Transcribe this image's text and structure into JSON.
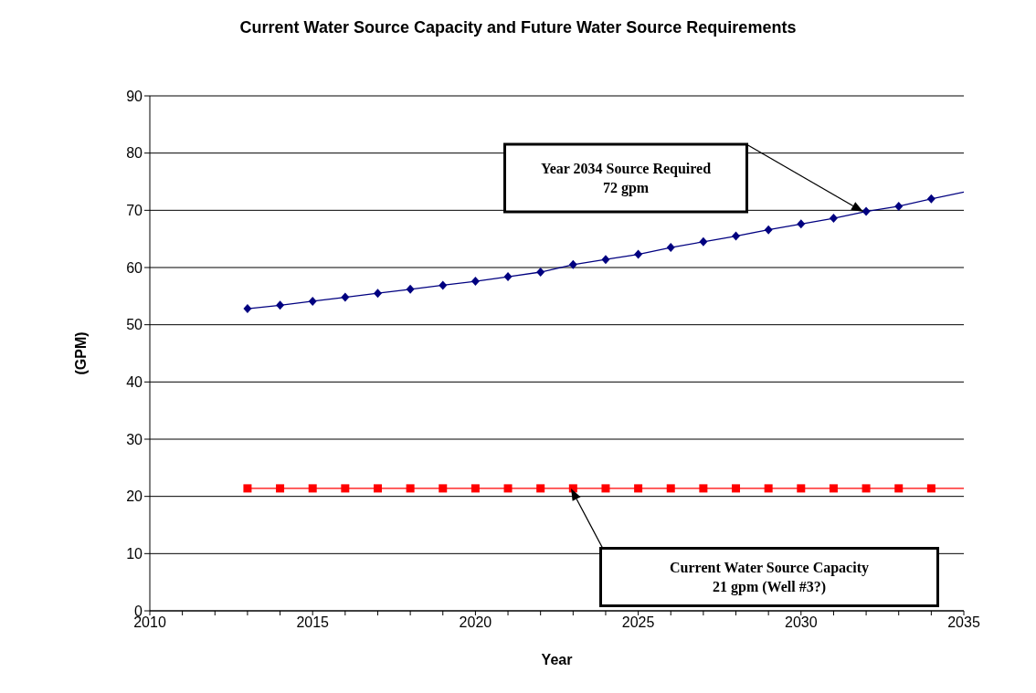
{
  "chart_data": {
    "type": "line",
    "title": "Current Water Source Capacity and Future Water Source Requirements",
    "xlabel": "Year",
    "ylabel": "(GPM)",
    "series": [
      {
        "color": "#000080",
        "marker": "diamond",
        "x": [
          2013,
          2014,
          2015,
          2016,
          2017,
          2018,
          2019,
          2020,
          2021,
          2022,
          2023,
          2024,
          2025,
          2026,
          2027,
          2028,
          2029,
          2030,
          2031,
          2032,
          2033,
          2034
        ],
        "values": [
          52.8,
          53.4,
          54.1,
          54.8,
          55.5,
          56.2,
          56.9,
          57.6,
          58.4,
          59.2,
          60.5,
          61.4,
          62.3,
          63.5,
          64.5,
          65.5,
          66.6,
          67.6,
          68.6,
          69.8,
          70.7,
          72.0
        ]
      },
      {
        "color": "#000080",
        "marker": "none",
        "x": [
          2034,
          2035
        ],
        "values": [
          72.0,
          73.2
        ]
      },
      {
        "color": "#ff0000",
        "marker": "square",
        "x": [
          2013,
          2014,
          2015,
          2016,
          2017,
          2018,
          2019,
          2020,
          2021,
          2022,
          2023,
          2024,
          2025,
          2026,
          2027,
          2028,
          2029,
          2030,
          2031,
          2032,
          2033,
          2034
        ],
        "values": [
          21.4,
          21.4,
          21.4,
          21.4,
          21.4,
          21.4,
          21.4,
          21.4,
          21.4,
          21.4,
          21.4,
          21.4,
          21.4,
          21.4,
          21.4,
          21.4,
          21.4,
          21.4,
          21.4,
          21.4,
          21.4,
          21.4
        ]
      },
      {
        "color": "#ff0000",
        "marker": "none",
        "x": [
          2034,
          2035
        ],
        "values": [
          21.4,
          21.4
        ]
      }
    ],
    "xlim": [
      2010,
      2035
    ],
    "xticks": [
      2010,
      {
        "value": 2011,
        "label": null
      },
      {
        "value": 2012,
        "label": null
      },
      {
        "value": 2013,
        "label": null
      },
      {
        "value": 2014,
        "label": null
      },
      2015,
      {
        "value": 2016,
        "label": null
      },
      {
        "value": 2017,
        "label": null
      },
      {
        "value": 2018,
        "label": null
      },
      {
        "value": 2019,
        "label": null
      },
      2020,
      {
        "value": 2021,
        "label": null
      },
      {
        "value": 2022,
        "label": null
      },
      {
        "value": 2023,
        "label": null
      },
      {
        "value": 2024,
        "label": null
      },
      2025,
      {
        "value": 2026,
        "label": null
      },
      {
        "value": 2027,
        "label": null
      },
      {
        "value": 2028,
        "label": null
      },
      {
        "value": 2029,
        "label": null
      },
      2030,
      {
        "value": 2031,
        "label": null
      },
      {
        "value": 2032,
        "label": null
      },
      {
        "value": 2033,
        "label": null
      },
      {
        "value": 2034,
        "label": null
      },
      2035
    ],
    "ylim": [
      0,
      90
    ],
    "yticks": [
      0,
      10,
      20,
      30,
      40,
      50,
      60,
      70,
      80,
      90
    ],
    "grid": "y",
    "line_style": "solid",
    "annotations": [
      "Year  2034 Source Required\n72 gpm",
      "Current Water Source Capacity\n21 gpm (Well #3?)"
    ]
  }
}
